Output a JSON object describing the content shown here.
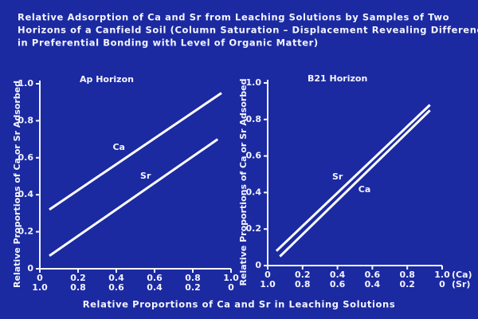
{
  "title": [
    "Relative Adsorption of Ca and Sr from Leaching Solutions by Samples of Two",
    "Horizons of a Canfield Soil (Column Saturation – Displacement Revealing Differences",
    "in Preferential Bonding with Level of Organic Matter)"
  ],
  "xlabel": "Relative Proportions of Ca and Sr in Leaching Solutions",
  "chart_data": [
    {
      "type": "line",
      "title": "Ap Horizon",
      "ylabel": "Relative Proportions of Ca or Sr Adsorbed",
      "xlim": [
        0,
        1
      ],
      "ylim": [
        0,
        1
      ],
      "x2lim": [
        1,
        0
      ],
      "xticks": [
        0,
        0.2,
        0.4,
        0.6,
        0.8,
        {
          "value": 1,
          "label": "1.0"
        }
      ],
      "x2ticks": [
        {
          "value": 1,
          "label": "1.0"
        },
        0.8,
        0.6,
        0.4,
        0.2,
        0
      ],
      "yticks": [
        0,
        0.2,
        0.4,
        0.6,
        0.8,
        {
          "value": 1,
          "label": "1.0"
        }
      ],
      "series": [
        {
          "name": "Ca",
          "color": "#ffffff",
          "x": [
            0.05,
            0.95
          ],
          "values": [
            0.32,
            0.95
          ]
        },
        {
          "name": "Sr",
          "color": "#ffffff",
          "x": [
            0.05,
            0.93
          ],
          "values": [
            0.07,
            0.7
          ]
        }
      ]
    },
    {
      "type": "line",
      "title": "B21 Horizon",
      "ylabel": "Relative Proportions of Ca or Sr Adsorbed",
      "xlim": [
        0,
        1
      ],
      "ylim": [
        0,
        1
      ],
      "x2lim": [
        1,
        0
      ],
      "xticks": [
        0,
        0.2,
        0.4,
        0.6,
        0.8,
        {
          "value": 1,
          "label": "1.0"
        }
      ],
      "x2ticks": [
        {
          "value": 1,
          "label": "1.0"
        },
        0.8,
        0.6,
        0.4,
        0.2,
        0
      ],
      "xtick_row_labels": [
        "(Ca)",
        "(Sr)"
      ],
      "yticks": [
        0,
        0.2,
        0.4,
        0.6,
        0.8,
        {
          "value": 1,
          "label": "1.0"
        }
      ],
      "series": [
        {
          "name": "Sr",
          "color": "#ffffff",
          "x": [
            0.05,
            0.93
          ],
          "values": [
            0.08,
            0.88
          ]
        },
        {
          "name": "Ca",
          "color": "#ffffff",
          "x": [
            0.07,
            0.93
          ],
          "values": [
            0.05,
            0.85
          ]
        }
      ]
    }
  ]
}
